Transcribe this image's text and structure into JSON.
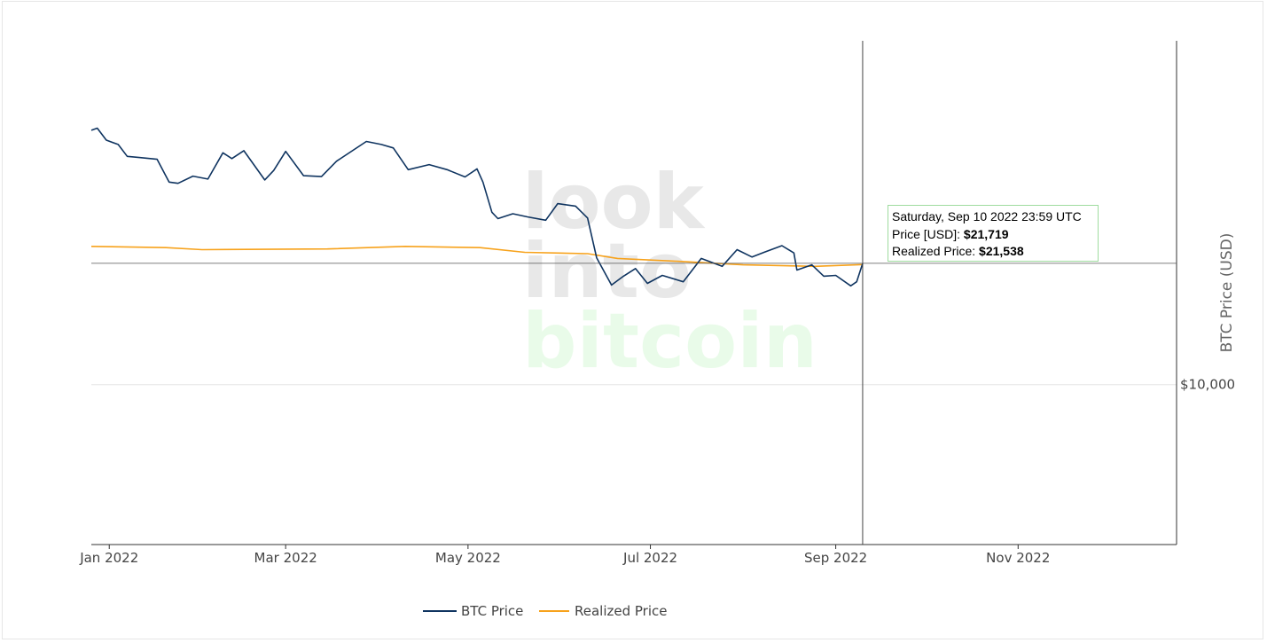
{
  "chart_data": {
    "type": "line",
    "watermark": [
      "look",
      "into",
      "bitcoin"
    ],
    "x_range": [
      "2021-12-26",
      "2022-12-24"
    ],
    "x_ticks": [
      "Jan 2022",
      "Mar 2022",
      "May 2022",
      "Jul 2022",
      "Sep 2022",
      "Nov 2022"
    ],
    "x_tick_dates": [
      "2022-01-01",
      "2022-03-01",
      "2022-05-01",
      "2022-07-01",
      "2022-09-01",
      "2022-11-01"
    ],
    "y_scale": "log",
    "y_range": [
      3600,
      90000
    ],
    "ylabel": "BTC Price (USD)",
    "y_ticks": [
      "$10,000"
    ],
    "y_tick_values": [
      10000
    ],
    "legend_position": "bottom-center",
    "series": [
      {
        "name": "BTC Price",
        "color": "#0f3460",
        "points": [
          [
            "2021-12-26",
            50800
          ],
          [
            "2021-12-28",
            51500
          ],
          [
            "2021-12-31",
            47700
          ],
          [
            "2022-01-04",
            46400
          ],
          [
            "2022-01-07",
            43000
          ],
          [
            "2022-01-11",
            42700
          ],
          [
            "2022-01-17",
            42200
          ],
          [
            "2022-01-21",
            36500
          ],
          [
            "2022-01-24",
            36200
          ],
          [
            "2022-01-29",
            37900
          ],
          [
            "2022-02-03",
            37200
          ],
          [
            "2022-02-08",
            44000
          ],
          [
            "2022-02-11",
            42400
          ],
          [
            "2022-02-15",
            44600
          ],
          [
            "2022-02-22",
            37000
          ],
          [
            "2022-02-25",
            39300
          ],
          [
            "2022-03-01",
            44400
          ],
          [
            "2022-03-07",
            38000
          ],
          [
            "2022-03-13",
            37800
          ],
          [
            "2022-03-18",
            41700
          ],
          [
            "2022-03-28",
            47300
          ],
          [
            "2022-04-02",
            46400
          ],
          [
            "2022-04-06",
            45400
          ],
          [
            "2022-04-11",
            39500
          ],
          [
            "2022-04-18",
            40800
          ],
          [
            "2022-04-24",
            39500
          ],
          [
            "2022-04-30",
            37700
          ],
          [
            "2022-05-04",
            39700
          ],
          [
            "2022-05-06",
            36500
          ],
          [
            "2022-05-09",
            30100
          ],
          [
            "2022-05-11",
            28900
          ],
          [
            "2022-05-16",
            29800
          ],
          [
            "2022-05-21",
            29200
          ],
          [
            "2022-05-27",
            28600
          ],
          [
            "2022-05-31",
            31800
          ],
          [
            "2022-06-06",
            31300
          ],
          [
            "2022-06-10",
            29000
          ],
          [
            "2022-06-13",
            22500
          ],
          [
            "2022-06-18",
            18900
          ],
          [
            "2022-06-22",
            20000
          ],
          [
            "2022-06-26",
            21000
          ],
          [
            "2022-06-30",
            19100
          ],
          [
            "2022-07-05",
            20100
          ],
          [
            "2022-07-12",
            19300
          ],
          [
            "2022-07-18",
            22400
          ],
          [
            "2022-07-25",
            21300
          ],
          [
            "2022-07-30",
            23700
          ],
          [
            "2022-08-04",
            22600
          ],
          [
            "2022-08-08",
            23300
          ],
          [
            "2022-08-14",
            24300
          ],
          [
            "2022-08-18",
            23200
          ],
          [
            "2022-08-19",
            20800
          ],
          [
            "2022-08-24",
            21500
          ],
          [
            "2022-08-28",
            20000
          ],
          [
            "2022-09-01",
            20100
          ],
          [
            "2022-09-06",
            18800
          ],
          [
            "2022-09-08",
            19300
          ],
          [
            "2022-09-10",
            21719
          ]
        ]
      },
      {
        "name": "Realized Price",
        "color": "#f7a21b",
        "points": [
          [
            "2021-12-26",
            24200
          ],
          [
            "2022-01-20",
            24000
          ],
          [
            "2022-02-01",
            23700
          ],
          [
            "2022-03-15",
            23800
          ],
          [
            "2022-04-10",
            24200
          ],
          [
            "2022-05-05",
            24000
          ],
          [
            "2022-05-20",
            23300
          ],
          [
            "2022-06-10",
            23100
          ],
          [
            "2022-06-20",
            22400
          ],
          [
            "2022-07-10",
            22000
          ],
          [
            "2022-08-01",
            21500
          ],
          [
            "2022-08-25",
            21300
          ],
          [
            "2022-09-10",
            21538
          ]
        ]
      }
    ],
    "hover": {
      "date": "2022-09-10",
      "title": "Saturday, Sep 10 2022 23:59 UTC",
      "price_label": "Price [USD]: ",
      "price_value": "$21,719",
      "realized_label": "Realized Price: ",
      "realized_value": "$21,538",
      "y_value": 21719
    }
  }
}
